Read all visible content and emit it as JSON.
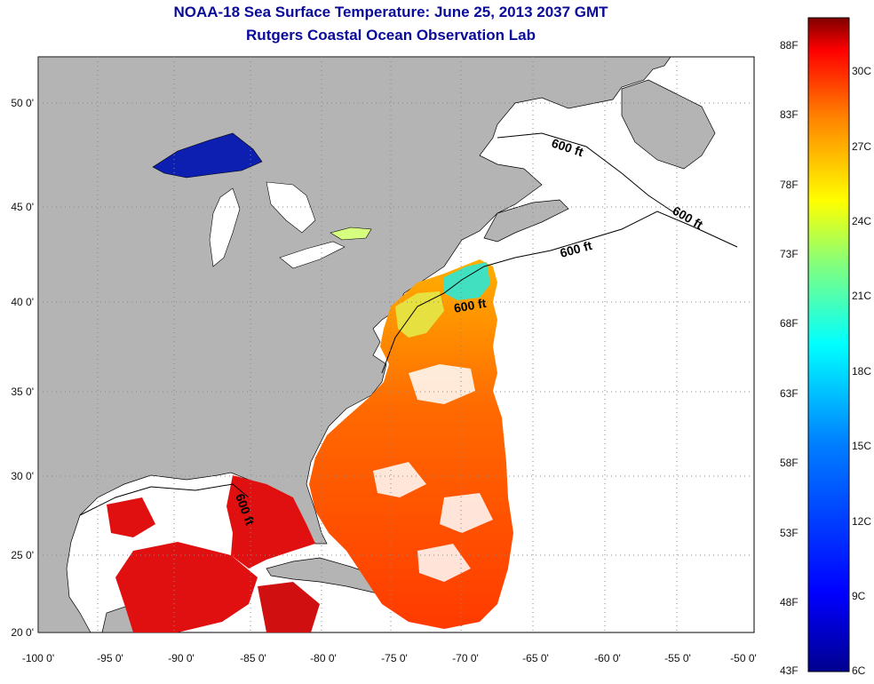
{
  "title": "NOAA-18 Sea Surface Temperature:  June 25, 2013 2037 GMT",
  "subtitle": "Rutgers Coastal Ocean Observation Lab",
  "map": {
    "lon_ticks": [
      "-100 0'",
      "-95 0'",
      "-90 0'",
      "-85 0'",
      "-80 0'",
      "-75 0'",
      "-70 0'",
      "-65 0'",
      "-60 0'",
      "-55 0'",
      "-50 0'"
    ],
    "lat_ticks": [
      "50 0'",
      "45 0'",
      "40 0'",
      "35 0'",
      "30 0'",
      "25 0'",
      "20 0'"
    ],
    "contour_label": "600 ft",
    "colors": {
      "land": "#b4b4b4",
      "no_data": "#ffffff",
      "grid": "#888888"
    }
  },
  "colorbar": {
    "fahrenheit": [
      "88F",
      "83F",
      "78F",
      "73F",
      "68F",
      "63F",
      "58F",
      "53F",
      "48F",
      "43F"
    ],
    "celsius": [
      "30C",
      "27C",
      "24C",
      "21C",
      "18C",
      "15C",
      "12C",
      "9C",
      "6C"
    ],
    "colors": [
      "#800000",
      "#ff0000",
      "#ff8000",
      "#ffff00",
      "#80ff80",
      "#00ffff",
      "#0080ff",
      "#0000ff",
      "#00008f"
    ]
  }
}
